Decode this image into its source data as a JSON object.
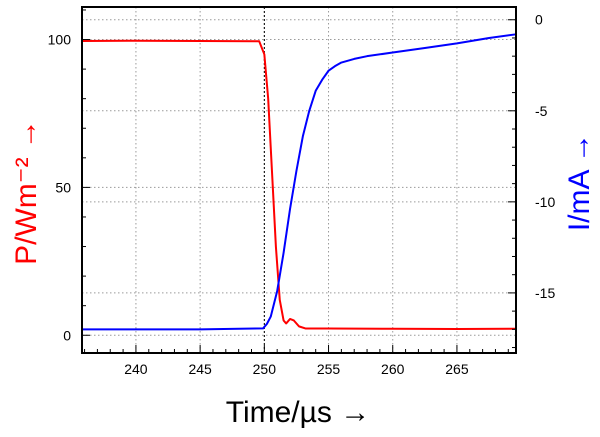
{
  "chart_data": {
    "type": "line",
    "title": "",
    "xlabel": "Time/µs →",
    "ylabel_left": "P/Wm⁻² →",
    "ylabel_right": "I/mA →",
    "xlim": [
      235.8,
      269.6
    ],
    "ylim_left": [
      -6,
      111
    ],
    "ylim_right": [
      -18.3,
      0.7
    ],
    "x_ticks": [
      240,
      245,
      250,
      255,
      260,
      265
    ],
    "left_ticks": [
      0,
      50,
      100
    ],
    "right_ticks": [
      0,
      -5,
      -10,
      -15
    ],
    "grid": true,
    "grid_style": "dotted",
    "vertical_marker_x": 250,
    "series": [
      {
        "axis": "left",
        "color": "#ff0000",
        "x": [
          235.8,
          240,
          245,
          249.6,
          250.0,
          250.3,
          250.6,
          250.9,
          251.2,
          251.5,
          251.7,
          252.0,
          252.3,
          252.7,
          253.2,
          255,
          260,
          265,
          269.6
        ],
        "y": [
          99.5,
          99.6,
          99.5,
          99.4,
          95,
          80,
          55,
          30,
          12,
          5,
          4,
          5.5,
          5,
          3,
          2.3,
          2.3,
          2.2,
          2.1,
          2.2
        ]
      },
      {
        "axis": "right",
        "color": "#0000ff",
        "x": [
          235.8,
          240,
          245,
          249.9,
          250.2,
          250.5,
          251,
          251.5,
          252,
          252.5,
          253,
          253.5,
          254,
          254.5,
          255,
          255.5,
          256,
          257,
          258,
          260,
          262.5,
          265,
          267.5,
          269.6
        ],
        "y": [
          -17.0,
          -17.0,
          -17.0,
          -16.95,
          -16.7,
          -16.3,
          -14.9,
          -12.8,
          -10.4,
          -8.3,
          -6.4,
          -5.0,
          -3.9,
          -3.3,
          -2.8,
          -2.55,
          -2.35,
          -2.15,
          -2.0,
          -1.8,
          -1.55,
          -1.3,
          -1.0,
          -0.8
        ]
      }
    ]
  }
}
